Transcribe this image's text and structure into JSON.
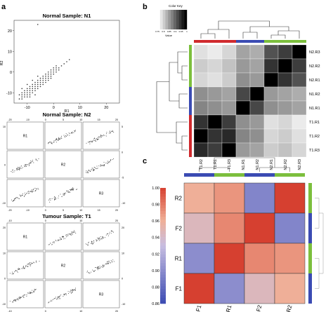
{
  "panel_labels": [
    "a",
    "b",
    "c"
  ],
  "chart_data": [
    {
      "type": "scatter",
      "title": "Normal Sample: N1",
      "xlabel": "R1",
      "ylabel": "R2",
      "xticks": [
        "-10",
        "0",
        "10",
        "20"
      ],
      "yticks": [
        "20",
        "10",
        "0",
        "-10"
      ],
      "xlim": [
        -15,
        25
      ],
      "ylim": [
        -15,
        25
      ],
      "points": [
        [
          -12,
          -12
        ],
        [
          -11,
          -11
        ],
        [
          -10,
          -10
        ],
        [
          -9,
          -9
        ],
        [
          -8,
          -8
        ],
        [
          -7,
          -7
        ],
        [
          -6,
          -6
        ],
        [
          -5,
          -5
        ],
        [
          -4,
          -4
        ],
        [
          -3,
          -3
        ],
        [
          -2,
          -2
        ],
        [
          -1,
          -1
        ],
        [
          0,
          0
        ],
        [
          1,
          1
        ],
        [
          2,
          2
        ],
        [
          3,
          3
        ],
        [
          -12,
          -10
        ],
        [
          -11,
          -9
        ],
        [
          -10,
          -8
        ],
        [
          -9,
          -7
        ],
        [
          -8,
          -6
        ],
        [
          -7,
          -5
        ],
        [
          -6,
          -4
        ],
        [
          -5,
          -3
        ],
        [
          -4,
          -2
        ],
        [
          -3,
          -1
        ],
        [
          -2,
          0
        ],
        [
          -1,
          1
        ],
        [
          0,
          2
        ],
        [
          1,
          3
        ],
        [
          -12,
          -11
        ],
        [
          -11,
          -10
        ],
        [
          -10,
          -9
        ],
        [
          -9,
          -8
        ],
        [
          -8,
          -7
        ],
        [
          -7,
          -6
        ],
        [
          -6,
          -5
        ],
        [
          -5,
          -4
        ],
        [
          -4,
          -3
        ],
        [
          -3,
          -2
        ],
        [
          -2,
          -1
        ],
        [
          -1,
          0
        ],
        [
          0,
          1
        ],
        [
          1,
          2
        ],
        [
          -11,
          -12
        ],
        [
          -10,
          -11
        ],
        [
          -9,
          -10
        ],
        [
          -8,
          -9
        ],
        [
          -7,
          -8
        ],
        [
          -6,
          -7
        ],
        [
          -5,
          -6
        ],
        [
          -4,
          -5
        ],
        [
          -3,
          -4
        ],
        [
          -2,
          -3
        ],
        [
          -1,
          -2
        ],
        [
          0,
          -1
        ],
        [
          1,
          0
        ],
        [
          2,
          1
        ],
        [
          -10,
          -12
        ],
        [
          -9,
          -11
        ],
        [
          -8,
          -10
        ],
        [
          -7,
          -9
        ],
        [
          -6,
          -8
        ],
        [
          -5,
          -7
        ],
        [
          -4,
          -6
        ],
        [
          -3,
          -5
        ],
        [
          -2,
          -4
        ],
        [
          -1,
          -3
        ],
        [
          -12,
          -8
        ],
        [
          -10,
          -6
        ],
        [
          -8,
          -4
        ],
        [
          -6,
          -2
        ],
        [
          -12,
          -13
        ],
        [
          -9,
          -12
        ],
        [
          -7,
          -11
        ],
        [
          4,
          4
        ],
        [
          5,
          5
        ],
        [
          6,
          6
        ],
        [
          -13,
          -13
        ],
        [
          -13,
          -11
        ],
        [
          -6,
          23
        ]
      ]
    },
    {
      "type": "scatter",
      "title": "Normal Sample: N2",
      "layout": "pairs",
      "labels": [
        "R1",
        "R2",
        "R3"
      ],
      "top_ticks": [
        "-20",
        "-10",
        "0",
        "5",
        "10",
        "15",
        "20"
      ],
      "bottom_ticks": [
        "-20",
        "-10",
        "0",
        "5",
        "10",
        "15",
        "20"
      ],
      "left_ticks": [
        "10",
        "0",
        "-10"
      ],
      "right_ticks": [
        "5",
        "0",
        "-5",
        "-10"
      ]
    },
    {
      "type": "scatter",
      "title": "Tumour Sample: T1",
      "layout": "pairs",
      "labels": [
        "R1",
        "R2",
        "R3"
      ],
      "top_ticks": [
        "-10",
        "0",
        "10",
        "20"
      ],
      "bottom_ticks": [
        "-10",
        "0",
        "10",
        "20"
      ],
      "left_ticks": [
        "20",
        "10",
        "0",
        "-10"
      ],
      "right_ticks": [
        "20",
        "10",
        "0",
        "-10"
      ]
    },
    {
      "type": "heatmap",
      "legend_title": "Color Key",
      "legend_xlabel": "Value",
      "legend_ticks": [
        "0.75",
        "0.8",
        "0.85",
        "0.9",
        "0.95",
        "1"
      ],
      "rows": [
        "N2.R3",
        "N2.R2",
        "N2.R1",
        "N1.R2",
        "N1.R1",
        "T1.R1",
        "T1.R2",
        "T1.R3"
      ],
      "columns": [
        "T1.R2",
        "T1.R1",
        "T1.R3",
        "N1.R1",
        "N1.R2",
        "N2.R1",
        "N2.R2",
        "N2.R3"
      ],
      "row_groups": [
        "N2",
        "N2",
        "N2",
        "N1",
        "N1",
        "T1",
        "T1",
        "T1"
      ],
      "col_groups": [
        "T1",
        "T1",
        "T1",
        "N1",
        "N1",
        "N2",
        "N2",
        "N2"
      ],
      "group_colors": {
        "T1": "#d02a2e",
        "N1": "#3b4bb3",
        "N2": "#7cbf3d"
      },
      "values": [
        [
          0.78,
          0.77,
          0.79,
          0.84,
          0.83,
          0.92,
          0.94,
          1.0
        ],
        [
          0.8,
          0.79,
          0.81,
          0.85,
          0.84,
          0.95,
          1.0,
          0.94
        ],
        [
          0.79,
          0.78,
          0.8,
          0.86,
          0.85,
          1.0,
          0.95,
          0.92
        ],
        [
          0.86,
          0.85,
          0.84,
          0.93,
          1.0,
          0.85,
          0.84,
          0.83
        ],
        [
          0.87,
          0.86,
          0.85,
          1.0,
          0.93,
          0.86,
          0.85,
          0.84
        ],
        [
          0.95,
          1.0,
          0.94,
          0.86,
          0.85,
          0.78,
          0.79,
          0.77
        ],
        [
          1.0,
          0.95,
          0.96,
          0.87,
          0.86,
          0.79,
          0.8,
          0.78
        ],
        [
          0.96,
          0.94,
          1.0,
          0.85,
          0.84,
          0.8,
          0.81,
          0.79
        ]
      ]
    },
    {
      "type": "heatmap",
      "rows": [
        "R2",
        "F2",
        "R1",
        "F1"
      ],
      "columns": [
        "F1",
        "R1",
        "F2",
        "R2"
      ],
      "colorbar_ticks": [
        "1.00",
        "0.98",
        "0.96",
        "0.94",
        "0.92",
        "0.90",
        "0.88",
        "0.86"
      ],
      "colorbar_range": [
        0.86,
        1.0
      ],
      "top_groups": [
        "#3b4bb3",
        "#7cbf3d",
        "#3b4bb3",
        "#7cbf3d"
      ],
      "right_groups": [
        "#7cbf3d",
        "#3b4bb3",
        "#7cbf3d",
        "#3b4bb3"
      ],
      "values": [
        [
          0.96,
          0.97,
          0.895,
          1.0
        ],
        [
          0.945,
          0.975,
          1.0,
          0.895
        ],
        [
          0.9,
          1.0,
          0.975,
          0.97
        ],
        [
          1.0,
          0.9,
          0.945,
          0.96
        ]
      ]
    }
  ]
}
